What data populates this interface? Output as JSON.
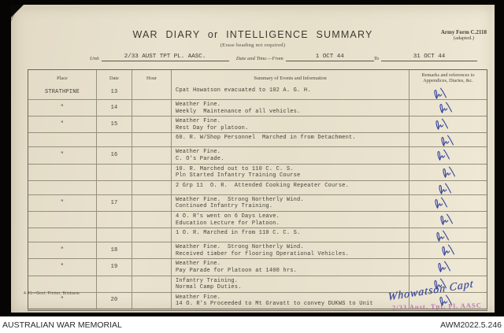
{
  "form": {
    "title": "WAR DIARY or INTELLIGENCE SUMMARY",
    "subtitle": "(Erase heading not required)",
    "army_form_line1": "Army Form C.2118",
    "army_form_line2": "(adapted.)",
    "unit_label": "Unit",
    "unit_value": "2/33 AUST TPT PL. AASC.",
    "date_label": "Date and Time.—From",
    "date_from": "1 OCT 44",
    "to_label": "To",
    "date_to": "31 OCT 44",
    "printer_note": "4-41—Govt. Printer, Brisbane.",
    "signature": "Whowatson Capt",
    "stamp": "2/33 Aust. Tpt. Pl. AASC",
    "ink_color": "#36459b",
    "stamp_color": "#b55cab"
  },
  "table": {
    "headers": {
      "place": "Place",
      "date": "Date",
      "hour": "Hour",
      "summary": "Summary of Events and Information",
      "remarks": "Remarks and references to Appendices, Diaries, &c."
    },
    "rows": [
      {
        "place": "STRATHPINE",
        "date": "13",
        "hour": "",
        "lines": [
          "Cpat Howatson evacuated to 102 A. G. H."
        ],
        "initialed": true
      },
      {
        "place": "\"",
        "date": "14",
        "hour": "",
        "lines": [
          "Weather Fine.",
          "Weekly  Maintenance of all vehicles."
        ],
        "initialed": true
      },
      {
        "place": "\"",
        "date": "15",
        "hour": "",
        "lines": [
          "Weather Fine.",
          "Rest Day for platoon."
        ],
        "initialed": true
      },
      {
        "place": "",
        "date": "",
        "hour": "",
        "lines": [
          "60. R. W/Shop Personnel  Marched in from Detachment."
        ],
        "initialed": true
      },
      {
        "place": "\"",
        "date": "16",
        "hour": "",
        "lines": [
          "Weather Fine.",
          "C. O's Parade."
        ],
        "initialed": true
      },
      {
        "place": "",
        "date": "",
        "hour": "",
        "lines": [
          "10. R. Marched out to 110 C. C. S.",
          "Pln Started Infantry Training Course"
        ],
        "initialed": true
      },
      {
        "place": "",
        "date": "",
        "hour": "",
        "lines": [
          "2 Grp 11  O. R.  Attended Cooking Repeater Course."
        ],
        "initialed": true
      },
      {
        "place": "\"",
        "date": "17",
        "hour": "",
        "lines": [
          "Weather Fine.  Strong Northerly Wind.",
          "Continued Infantry Training."
        ],
        "initialed": true
      },
      {
        "place": "",
        "date": "",
        "hour": "",
        "lines": [
          "4 O. R's went on 6 Days Leave.",
          "Education Lecture for Platoon."
        ],
        "initialed": true
      },
      {
        "place": "",
        "date": "",
        "hour": "",
        "lines": [
          "1 O. R. Marched in from 110 C. C. S."
        ],
        "initialed": true
      },
      {
        "place": "\"",
        "date": "18",
        "hour": "",
        "lines": [
          "Weather Fine.  Strong Northerly Wind.",
          "Received timber for flooring Operational Vehicles."
        ],
        "initialed": true
      },
      {
        "place": "\"",
        "date": "19",
        "hour": "",
        "lines": [
          "Weather Fine.",
          "Pay Parade for Platoon at 1400 hrs."
        ],
        "initialed": true
      },
      {
        "place": "",
        "date": "",
        "hour": "",
        "lines": [
          "Infantry Training.",
          "Normal Camp Duties."
        ],
        "initialed": true
      },
      {
        "place": "\"",
        "date": "20",
        "hour": "",
        "lines": [
          "Weather Fine.",
          "14 O. R's Proceeded to Mt Gravatt to convey DUKWS to Unit"
        ],
        "initialed": true
      }
    ]
  },
  "caption_bar": {
    "left": "AUSTRALIAN WAR MEMORIAL",
    "right": "AWM2022.5.246"
  }
}
